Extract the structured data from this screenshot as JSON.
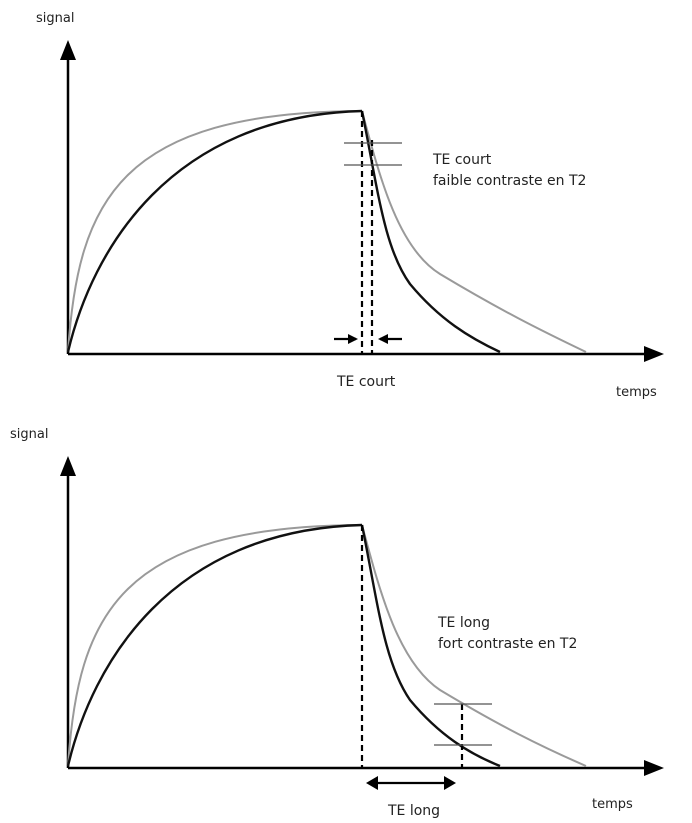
{
  "panels": [
    {
      "y_axis_label": "signal",
      "x_axis_label": "temps",
      "annotation_title": "TE court",
      "annotation_subtitle": "faible contraste en T2",
      "te_label": "TE court"
    },
    {
      "y_axis_label": "signal",
      "x_axis_label": "temps",
      "annotation_title": "TE long",
      "annotation_subtitle": "fort contraste en T2",
      "te_label": "TE long"
    }
  ],
  "colors": {
    "axis": "#000000",
    "curve_dark": "#111111",
    "curve_light": "#9a9a9a"
  }
}
